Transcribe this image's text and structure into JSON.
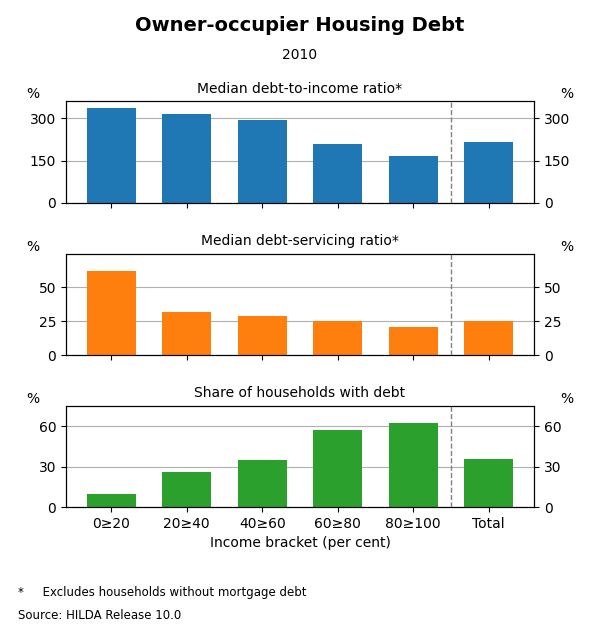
{
  "title": "Owner-occupier Housing Debt",
  "subtitle": "2010",
  "annotations": [
    "*     Excludes households without mortgage debt",
    "Source: HILDA Release 10.0"
  ],
  "chart_data": [
    {
      "type": "bar",
      "title": "Median debt-to-income ratio*",
      "categories": [
        "0≥20",
        "20≥40",
        "40≥60",
        "60≥80",
        "80≥100",
        "Total"
      ],
      "values": [
        335,
        315,
        293,
        210,
        165,
        215
      ],
      "ylim": [
        0,
        360
      ],
      "yticks": [
        0,
        150,
        300
      ],
      "ylabel": "%",
      "y2label": "%",
      "y2lim": [
        0,
        360
      ],
      "y2ticks": [
        0,
        150,
        300
      ],
      "grid": true,
      "tick_labels": "y"
    },
    {
      "type": "bar",
      "title": "Median debt-servicing ratio*",
      "categories": [
        "0≥20",
        "20≥40",
        "40≥60",
        "60≥80",
        "80≥100",
        "Total"
      ],
      "values": [
        62,
        32,
        29,
        25,
        21,
        25
      ],
      "ylim": [
        0,
        75
      ],
      "yticks": [
        0,
        25,
        50
      ],
      "ylabel": "%",
      "y2label": "%",
      "y2lim": [
        0,
        75
      ],
      "y2ticks": [
        0,
        25,
        50
      ],
      "grid": true,
      "tick_labels": "y"
    },
    {
      "type": "bar",
      "title": "Share of households with debt",
      "categories": [
        "0≥20",
        "20≥40",
        "40≥60",
        "60≥80",
        "80≥100",
        "Total"
      ],
      "values": [
        10,
        26,
        35,
        57,
        62,
        36
      ],
      "ylim": [
        0,
        75
      ],
      "yticks": [
        0,
        30,
        60
      ],
      "ylabel": "%",
      "y2label": "%",
      "y2lim": [
        0,
        75
      ],
      "y2ticks": [
        0,
        30,
        60
      ],
      "xlabel": "Income bracket (per cent)",
      "grid": true
    }
  ]
}
